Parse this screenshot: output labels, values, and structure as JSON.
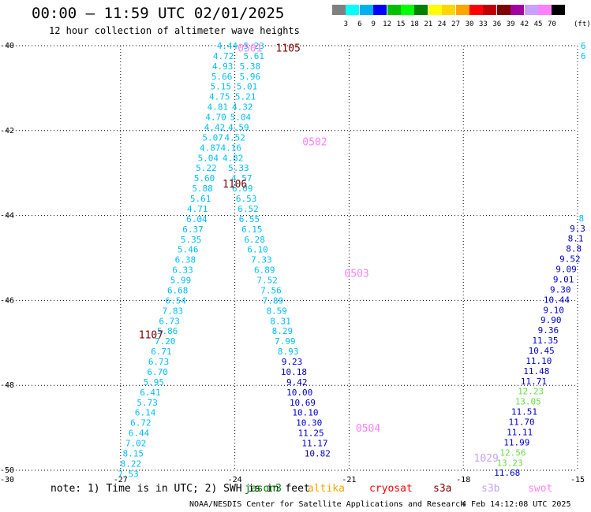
{
  "header": {
    "title": "00:00 – 11:59 UTC 02/01/2025",
    "subtitle": "12 hour collection of altimeter wave heights"
  },
  "colorbar": {
    "cells": [
      "#808080",
      "#00ffff",
      "#00b0f0",
      "#0000ff",
      "#00c000",
      "#00ff00",
      "#008000",
      "#ffff00",
      "#ffd700",
      "#ffa500",
      "#ff0000",
      "#c00000",
      "#800000",
      "#a000a0",
      "#c8a0ff",
      "#ff80ff",
      "#000000"
    ],
    "labels": [
      "3",
      "6",
      "9",
      "12",
      "15",
      "18",
      "21",
      "24",
      "27",
      "30",
      "33",
      "36",
      "39",
      "42",
      "45",
      "70"
    ],
    "units": "(ft)"
  },
  "chart_data": {
    "type": "scatter",
    "title": "00:00 – 11:59 UTC 02/01/2025",
    "subtitle": "12 hour collection of altimeter wave heights",
    "x_ticks": [
      -27,
      -24,
      -21,
      -18,
      -15
    ],
    "y_ticks": [
      -40,
      -42,
      -44,
      -46,
      -48,
      -50
    ],
    "corner_labels": [
      "-30",
      "-15"
    ],
    "xlim": [
      -30,
      -15
    ],
    "ylim": [
      -50,
      -40
    ],
    "grid": true,
    "track_labels": [
      {
        "text": "1105",
        "lon": -22.6,
        "lat": -40.05,
        "color": "#800000"
      },
      {
        "text": "0501",
        "lon": -23.6,
        "lat": -40.05,
        "color": "#ff80ff"
      },
      {
        "text": "0502",
        "lon": -21.9,
        "lat": -42.25,
        "color": "#ff80ff"
      },
      {
        "text": "1106",
        "lon": -24.0,
        "lat": -43.25,
        "color": "#800000"
      },
      {
        "text": "0503",
        "lon": -20.8,
        "lat": -45.35,
        "color": "#ff80ff"
      },
      {
        "text": "1107",
        "lon": -26.2,
        "lat": -46.8,
        "color": "#800000"
      },
      {
        "text": "0504",
        "lon": -20.5,
        "lat": -49.0,
        "color": "#ff80ff"
      },
      {
        "text": "1029",
        "lon": -17.4,
        "lat": -49.7,
        "color": "#c8a0ff"
      }
    ],
    "series": [
      {
        "color": "#00bfff",
        "points": [
          {
            "lon": -24.2,
            "lat": -40.0,
            "v": "4.44"
          },
          {
            "lon": -24.3,
            "lat": -40.24,
            "v": "4.72"
          },
          {
            "lon": -24.32,
            "lat": -40.48,
            "v": "4.93"
          },
          {
            "lon": -24.34,
            "lat": -40.72,
            "v": "5.66"
          },
          {
            "lon": -24.37,
            "lat": -40.96,
            "v": "5.15"
          },
          {
            "lon": -24.4,
            "lat": -41.2,
            "v": "4.75"
          },
          {
            "lon": -24.45,
            "lat": -41.44,
            "v": "4.81"
          },
          {
            "lon": -24.5,
            "lat": -41.68,
            "v": "4.70"
          },
          {
            "lon": -24.53,
            "lat": -41.92,
            "v": "4.42"
          },
          {
            "lon": -24.58,
            "lat": -42.16,
            "v": "5.07"
          },
          {
            "lon": -24.65,
            "lat": -42.4,
            "v": "4.87"
          },
          {
            "lon": -24.7,
            "lat": -42.64,
            "v": "5.04"
          },
          {
            "lon": -24.75,
            "lat": -42.88,
            "v": "5.22"
          },
          {
            "lon": -24.8,
            "lat": -43.12,
            "v": "5.60"
          },
          {
            "lon": -24.85,
            "lat": -43.36,
            "v": "5.88"
          },
          {
            "lon": -24.9,
            "lat": -43.6,
            "v": "5.61"
          },
          {
            "lon": -24.98,
            "lat": -43.84,
            "v": "4.71"
          },
          {
            "lon": -25.0,
            "lat": -44.08,
            "v": "6.04"
          },
          {
            "lon": -25.1,
            "lat": -44.32,
            "v": "6.37"
          },
          {
            "lon": -25.15,
            "lat": -44.56,
            "v": "5.35"
          },
          {
            "lon": -25.23,
            "lat": -44.8,
            "v": "5.46"
          },
          {
            "lon": -25.3,
            "lat": -45.04,
            "v": "6.38"
          },
          {
            "lon": -25.37,
            "lat": -45.28,
            "v": "6.33"
          },
          {
            "lon": -25.42,
            "lat": -45.52,
            "v": "5.99"
          },
          {
            "lon": -25.5,
            "lat": -45.76,
            "v": "6.68"
          },
          {
            "lon": -25.55,
            "lat": -46.0,
            "v": "6.54"
          },
          {
            "lon": -25.63,
            "lat": -46.24,
            "v": "7.83"
          },
          {
            "lon": -25.72,
            "lat": -46.48,
            "v": "6.73"
          },
          {
            "lon": -25.77,
            "lat": -46.72,
            "v": "5.86"
          },
          {
            "lon": -25.83,
            "lat": -46.96,
            "v": "7.20"
          },
          {
            "lon": -25.93,
            "lat": -47.2,
            "v": "6.71"
          },
          {
            "lon": -26.0,
            "lat": -47.44,
            "v": "6.73"
          },
          {
            "lon": -26.03,
            "lat": -47.68,
            "v": "6.70"
          },
          {
            "lon": -26.13,
            "lat": -47.92,
            "v": "5.95"
          },
          {
            "lon": -26.22,
            "lat": -48.16,
            "v": "6.41"
          },
          {
            "lon": -26.3,
            "lat": -48.4,
            "v": "5.73"
          },
          {
            "lon": -26.35,
            "lat": -48.64,
            "v": "6.14"
          },
          {
            "lon": -26.47,
            "lat": -48.88,
            "v": "6.72"
          },
          {
            "lon": -26.52,
            "lat": -49.12,
            "v": "6.44"
          },
          {
            "lon": -26.6,
            "lat": -49.36,
            "v": "7.02"
          },
          {
            "lon": -26.67,
            "lat": -49.6,
            "v": "8.15"
          },
          {
            "lon": -26.73,
            "lat": -49.84,
            "v": "8.22"
          },
          {
            "lon": -26.8,
            "lat": -50.08,
            "v": "7.53"
          }
        ]
      },
      {
        "color": "#00bfff",
        "points": [
          {
            "lon": -23.5,
            "lat": -40.0,
            "v": "5.23"
          },
          {
            "lon": -23.5,
            "lat": -40.24,
            "v": "5.61"
          },
          {
            "lon": -23.6,
            "lat": -40.48,
            "v": "5.38"
          },
          {
            "lon": -23.6,
            "lat": -40.72,
            "v": "5.96"
          },
          {
            "lon": -23.68,
            "lat": -40.96,
            "v": "5.01"
          },
          {
            "lon": -23.72,
            "lat": -41.2,
            "v": "5.21"
          },
          {
            "lon": -23.8,
            "lat": -41.44,
            "v": "4.32"
          },
          {
            "lon": -23.85,
            "lat": -41.68,
            "v": "5.04"
          },
          {
            "lon": -23.9,
            "lat": -41.92,
            "v": "4.59"
          },
          {
            "lon": -24.0,
            "lat": -42.16,
            "v": "4.52"
          },
          {
            "lon": -24.1,
            "lat": -42.4,
            "v": "4.16"
          },
          {
            "lon": -24.05,
            "lat": -42.64,
            "v": "4.82"
          },
          {
            "lon": -23.9,
            "lat": -42.88,
            "v": "5.33"
          },
          {
            "lon": -23.82,
            "lat": -43.12,
            "v": "4.57"
          },
          {
            "lon": -23.8,
            "lat": -43.36,
            "v": "6.09"
          },
          {
            "lon": -23.7,
            "lat": -43.6,
            "v": "6.53"
          },
          {
            "lon": -23.65,
            "lat": -43.84,
            "v": "6.52"
          },
          {
            "lon": -23.62,
            "lat": -44.08,
            "v": "6.55"
          },
          {
            "lon": -23.55,
            "lat": -44.32,
            "v": "6.15"
          },
          {
            "lon": -23.48,
            "lat": -44.56,
            "v": "6.28"
          },
          {
            "lon": -23.4,
            "lat": -44.8,
            "v": "6.10"
          },
          {
            "lon": -23.3,
            "lat": -45.04,
            "v": "7.33"
          },
          {
            "lon": -23.22,
            "lat": -45.28,
            "v": "6.89"
          },
          {
            "lon": -23.15,
            "lat": -45.52,
            "v": "7.52"
          },
          {
            "lon": -23.05,
            "lat": -45.76,
            "v": "7.56"
          },
          {
            "lon": -23.0,
            "lat": -46.0,
            "v": "7.89"
          },
          {
            "lon": -22.9,
            "lat": -46.24,
            "v": "8.59"
          },
          {
            "lon": -22.8,
            "lat": -46.48,
            "v": "8.31"
          },
          {
            "lon": -22.75,
            "lat": -46.72,
            "v": "8.29"
          },
          {
            "lon": -22.68,
            "lat": -46.96,
            "v": "7.99"
          },
          {
            "lon": -22.6,
            "lat": -47.2,
            "v": "8.93"
          }
        ]
      },
      {
        "color": "#0000cd",
        "points": [
          {
            "lon": -22.5,
            "lat": -47.44,
            "v": "9.23"
          },
          {
            "lon": -22.45,
            "lat": -47.68,
            "v": "10.18"
          },
          {
            "lon": -22.37,
            "lat": -47.92,
            "v": "9.42"
          },
          {
            "lon": -22.3,
            "lat": -48.16,
            "v": "10.00"
          },
          {
            "lon": -22.22,
            "lat": -48.4,
            "v": "10.69"
          },
          {
            "lon": -22.15,
            "lat": -48.64,
            "v": "10.10"
          },
          {
            "lon": -22.05,
            "lat": -48.88,
            "v": "10.30"
          },
          {
            "lon": -22.0,
            "lat": -49.12,
            "v": "11.25"
          },
          {
            "lon": -21.9,
            "lat": -49.36,
            "v": "11.17"
          },
          {
            "lon": -21.83,
            "lat": -49.6,
            "v": "10.82"
          }
        ]
      },
      {
        "color": "#0000cd",
        "points": [
          {
            "lon": -15.0,
            "lat": -44.3,
            "v": "9.3"
          },
          {
            "lon": -15.05,
            "lat": -44.54,
            "v": "8.1"
          },
          {
            "lon": -15.1,
            "lat": -44.78,
            "v": "8.8"
          },
          {
            "lon": -15.2,
            "lat": -45.02,
            "v": "9.52"
          },
          {
            "lon": -15.3,
            "lat": -45.26,
            "v": "9.09"
          },
          {
            "lon": -15.37,
            "lat": -45.5,
            "v": "9.01"
          },
          {
            "lon": -15.45,
            "lat": -45.74,
            "v": "9.30"
          },
          {
            "lon": -15.55,
            "lat": -45.98,
            "v": "10.44"
          },
          {
            "lon": -15.63,
            "lat": -46.22,
            "v": "9.10"
          },
          {
            "lon": -15.7,
            "lat": -46.46,
            "v": "9.90"
          },
          {
            "lon": -15.77,
            "lat": -46.7,
            "v": "9.36"
          },
          {
            "lon": -15.85,
            "lat": -46.94,
            "v": "11.35"
          },
          {
            "lon": -15.95,
            "lat": -47.18,
            "v": "10.45"
          },
          {
            "lon": -16.02,
            "lat": -47.42,
            "v": "11.10"
          },
          {
            "lon": -16.08,
            "lat": -47.66,
            "v": "11.48"
          },
          {
            "lon": -16.15,
            "lat": -47.9,
            "v": "11.71"
          }
        ]
      },
      {
        "color": "#66dd44",
        "points": [
          {
            "lon": -16.23,
            "lat": -48.14,
            "v": "12.23"
          },
          {
            "lon": -16.3,
            "lat": -48.38,
            "v": "13.05"
          }
        ]
      },
      {
        "color": "#0000cd",
        "points": [
          {
            "lon": -16.4,
            "lat": -48.62,
            "v": "11.51"
          },
          {
            "lon": -16.47,
            "lat": -48.86,
            "v": "11.70"
          },
          {
            "lon": -16.52,
            "lat": -49.1,
            "v": "11.11"
          },
          {
            "lon": -16.6,
            "lat": -49.34,
            "v": "11.99"
          }
        ]
      },
      {
        "color": "#66dd44",
        "points": [
          {
            "lon": -16.7,
            "lat": -49.58,
            "v": "12.56"
          },
          {
            "lon": -16.78,
            "lat": -49.82,
            "v": "13.23"
          }
        ]
      },
      {
        "color": "#0000cd",
        "points": [
          {
            "lon": -16.85,
            "lat": -50.06,
            "v": "11.68"
          }
        ]
      },
      {
        "color": "#00bfff",
        "points": [
          {
            "lon": -14.85,
            "lat": -40.0,
            "v": "6"
          },
          {
            "lon": -14.85,
            "lat": -40.24,
            "v": "6"
          },
          {
            "lon": -14.9,
            "lat": -44.06,
            "v": "8"
          }
        ]
      }
    ]
  },
  "footer": {
    "note": "note: 1) Time is in UTC; 2) SWH is in feet",
    "missions": [
      {
        "text": "jason3",
        "color": "#008000"
      },
      {
        "text": "altika",
        "color": "#ffa500"
      },
      {
        "text": "cryosat",
        "color": "#ff0000"
      },
      {
        "text": "s3a",
        "color": "#800000"
      },
      {
        "text": "s3b",
        "color": "#c8a0ff"
      },
      {
        "text": "swot",
        "color": "#ff80ff"
      }
    ],
    "credit": "NOAA/NESDIS Center for Satellite Applications and Research",
    "timestamp": "4 Feb 14:12:08 UTC 2025"
  }
}
